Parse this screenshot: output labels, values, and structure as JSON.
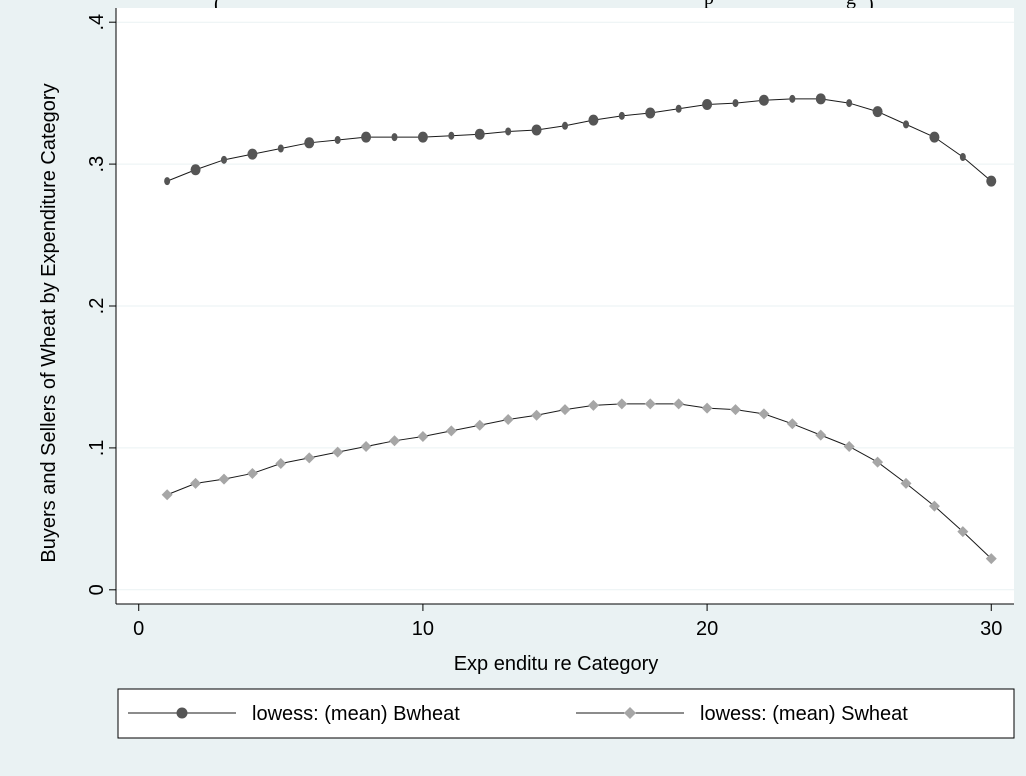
{
  "caption_top": "(",
  "caption_top_right": "p",
  "caption_top_right2": "g",
  "caption_top_right3": ")",
  "chart_data": {
    "type": "line",
    "title": "",
    "xlabel": "Exp enditu re Category",
    "ylabel": "Buyers and Sellers of Wheat by Expenditure Category",
    "xlim": [
      -0.8,
      30.8
    ],
    "ylim": [
      -0.01,
      0.41
    ],
    "x_ticks": [
      0,
      10,
      20,
      30
    ],
    "x_tick_labels": [
      "0",
      "10",
      "20",
      "30"
    ],
    "y_ticks": [
      0,
      0.1,
      0.2,
      0.3,
      0.4
    ],
    "y_tick_labels": [
      "0",
      ".1",
      ".2",
      ".3",
      ".4"
    ],
    "grid": true,
    "legend_position": "bottom",
    "colors": {
      "background": "#eaf2f3",
      "plot_background": "#ffffff",
      "grid": "#eaf2f3",
      "line": "#1a1a1a",
      "series_bwheat_marker": "#555555",
      "series_swheat_marker": "#a6a6a6"
    },
    "series": [
      {
        "name": "lowess: (mean) Bwheat",
        "marker": "circle",
        "x": [
          1,
          2,
          3,
          4,
          5,
          6,
          7,
          8,
          9,
          10,
          11,
          12,
          13,
          14,
          15,
          16,
          17,
          18,
          19,
          20,
          21,
          22,
          23,
          24,
          25,
          26,
          27,
          28,
          29,
          30
        ],
        "y": [
          0.288,
          0.296,
          0.303,
          0.307,
          0.311,
          0.315,
          0.317,
          0.319,
          0.319,
          0.319,
          0.32,
          0.321,
          0.323,
          0.324,
          0.327,
          0.331,
          0.334,
          0.336,
          0.339,
          0.342,
          0.343,
          0.345,
          0.346,
          0.346,
          0.343,
          0.337,
          0.328,
          0.319,
          0.305,
          0.288
        ]
      },
      {
        "name": "lowess: (mean) Swheat",
        "marker": "diamond",
        "x": [
          1,
          2,
          3,
          4,
          5,
          6,
          7,
          8,
          9,
          10,
          11,
          12,
          13,
          14,
          15,
          16,
          17,
          18,
          19,
          20,
          21,
          22,
          23,
          24,
          25,
          26,
          27,
          28,
          29,
          30
        ],
        "y": [
          0.067,
          0.075,
          0.078,
          0.082,
          0.089,
          0.093,
          0.097,
          0.101,
          0.105,
          0.108,
          0.112,
          0.116,
          0.12,
          0.123,
          0.127,
          0.13,
          0.131,
          0.131,
          0.131,
          0.128,
          0.127,
          0.124,
          0.117,
          0.109,
          0.101,
          0.09,
          0.075,
          0.059,
          0.041,
          0.022
        ]
      }
    ]
  }
}
